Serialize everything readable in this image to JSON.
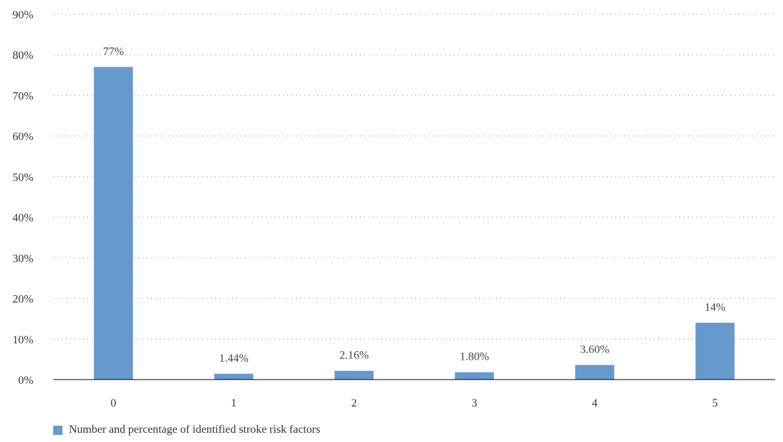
{
  "chart_data": {
    "type": "bar",
    "categories": [
      "0",
      "1",
      "2",
      "3",
      "4",
      "5"
    ],
    "values": [
      77,
      1.44,
      2.16,
      1.8,
      3.6,
      14
    ],
    "data_labels": [
      "77%",
      "1.44%",
      "2.16%",
      "1.80%",
      "3.60%",
      "14%"
    ],
    "y_ticks": [
      "0%",
      "10%",
      "20%",
      "30%",
      "40%",
      "50%",
      "60%",
      "70%",
      "80%",
      "90%"
    ],
    "ylim": [
      0,
      90
    ],
    "grid": true,
    "legend_position": "bottom-left",
    "legend": [
      "Number and percentage of identified stroke risk factors"
    ],
    "colors": {
      "bar": "#6699cc",
      "grid": "#999999",
      "axis": "#000000"
    }
  }
}
